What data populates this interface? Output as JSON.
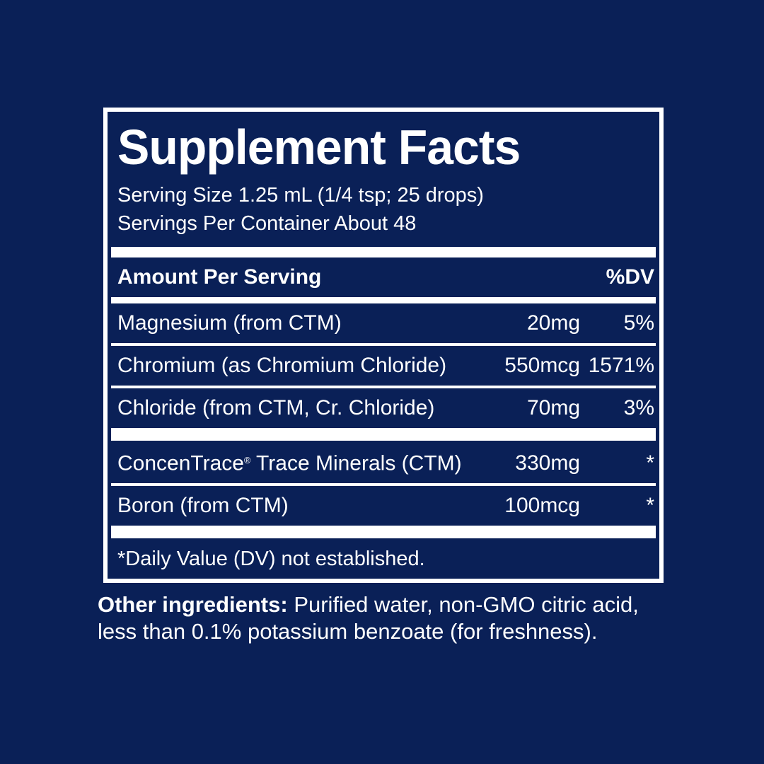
{
  "colors": {
    "background": "#0a2057",
    "text": "#ffffff"
  },
  "label": {
    "title": "Supplement Facts",
    "serving_size": "Serving Size 1.25 mL (1/4 tsp; 25 drops)",
    "servings_per_container": "Servings Per Container About 48",
    "header": {
      "amount_per_serving": "Amount Per Serving",
      "dv": "%DV"
    },
    "rows": [
      {
        "name": "Magnesium (from CTM)",
        "amount": "20mg",
        "dv": "5%"
      },
      {
        "name": "Chromium (as Chromium Chloride)",
        "amount": "550mcg",
        "dv": "1571%"
      },
      {
        "name": "Chloride (from CTM, Cr. Chloride)",
        "amount": "70mg",
        "dv": "3%"
      },
      {
        "name_pre": "ConcenTrace",
        "name_reg": "®",
        "name_rest": " Trace Minerals (CTM)",
        "amount": "330mg",
        "dv": "*"
      },
      {
        "name": "Boron (from CTM)",
        "amount": "100mcg",
        "dv": "*"
      }
    ],
    "footnote": "*Daily Value (DV) not established."
  },
  "other_ingredients": {
    "label": "Other ingredients:",
    "line1_rest": " Purified water, non-GMO citric acid,",
    "line2": "less than 0.1% potassium benzoate (for freshness)."
  }
}
